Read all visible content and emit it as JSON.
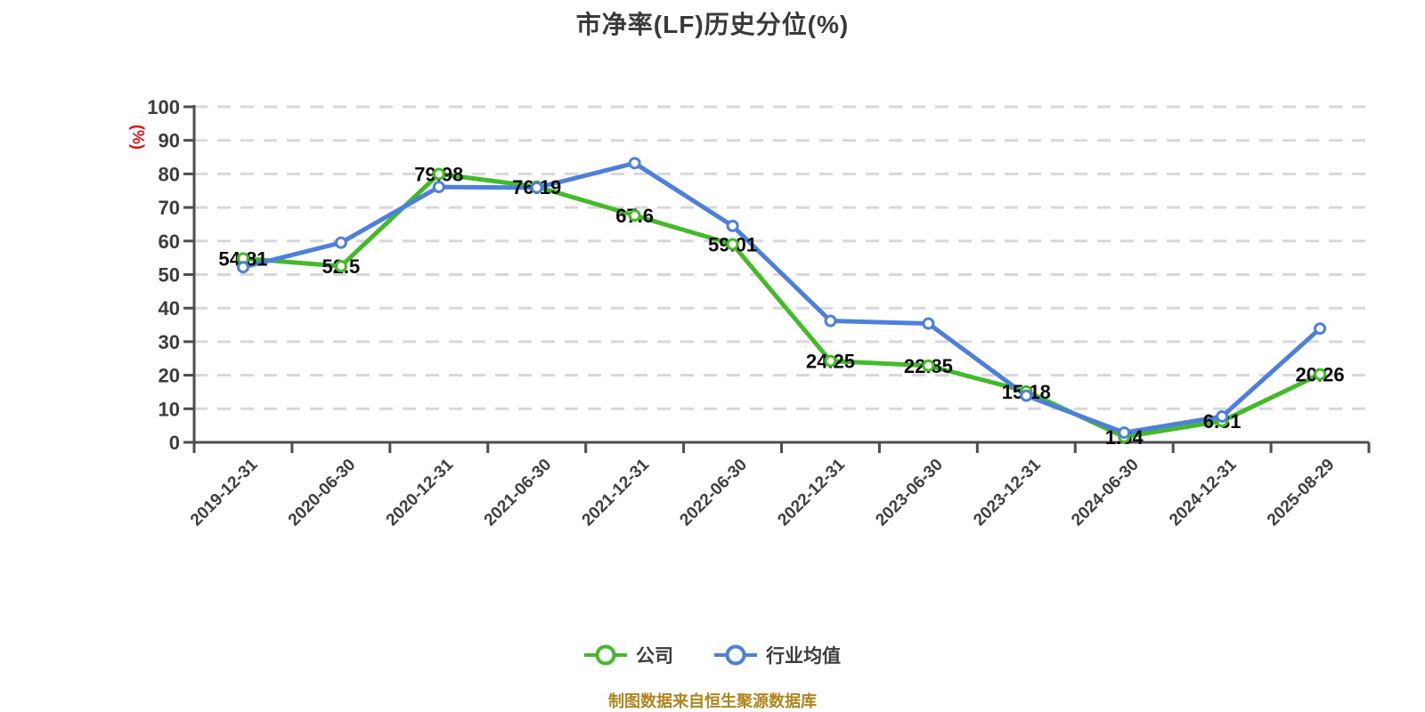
{
  "title": "市净率(LF)历史分位(%)",
  "y_axis_name": "(%)",
  "y_axis_name_color": "#e01212",
  "footer": "制图数据来自恒生聚源数据库",
  "footer_color": "#b0861c",
  "legend": {
    "items": [
      {
        "id": "company",
        "label": "公司",
        "color": "#43bb29"
      },
      {
        "id": "industry-average",
        "label": "行业均值",
        "color": "#4d80dc"
      }
    ]
  },
  "chart_data": {
    "type": "line",
    "title": "市净率(LF)历史分位(%)",
    "ylabel": "(%)",
    "x": [
      "2019-12-31",
      "2020-06-30",
      "2020-12-31",
      "2021-06-30",
      "2021-12-31",
      "2022-06-30",
      "2022-12-31",
      "2023-06-30",
      "2023-12-31",
      "2024-06-30",
      "2024-12-31",
      "2025-08-29"
    ],
    "series": [
      {
        "id": "company",
        "name": "公司",
        "color": "#43bb29",
        "values": [
          54.81,
          52.5,
          79.98,
          76.19,
          67.6,
          59.01,
          24.25,
          22.85,
          15.18,
          1.64,
          6.31,
          20.26
        ],
        "data_labels": true
      },
      {
        "id": "industry-average",
        "name": "行业均值",
        "color": "#4d80dc",
        "values": [
          52.2,
          59.5,
          76.1,
          75.9,
          83.2,
          64.5,
          36.2,
          35.4,
          13.9,
          2.9,
          7.7,
          33.9
        ],
        "data_labels": false
      }
    ],
    "ylim": [
      0,
      100
    ],
    "y_tick_step": 10,
    "grid": "horizontal-dashed",
    "legend_position": "bottom"
  }
}
